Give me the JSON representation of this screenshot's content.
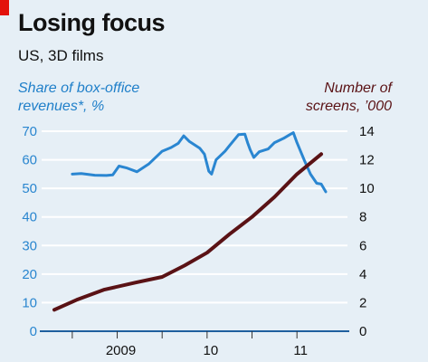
{
  "header": {
    "title": "Losing focus",
    "subtitle": "US, 3D films"
  },
  "chart_data": {
    "type": "line",
    "title": "Losing focus",
    "subtitle": "US, 3D films",
    "x_ticks": [
      {
        "label": "2009",
        "x": 2009.0
      },
      {
        "label": "10",
        "x": 2010.0
      },
      {
        "label": "11",
        "x": 2011.0
      }
    ],
    "xlim": [
      2008.3,
      2011.42
    ],
    "y_left": {
      "label_lines": [
        "Share of box-office",
        "revenues*, %"
      ],
      "ticks": [
        0,
        10,
        20,
        30,
        40,
        50,
        60,
        70
      ],
      "ylim": [
        0,
        70
      ]
    },
    "y_right": {
      "label_lines": [
        "Number of",
        "screens, ’000"
      ],
      "ticks": [
        0,
        2,
        4,
        6,
        8,
        10,
        12,
        14
      ],
      "ylim": [
        0,
        14
      ]
    },
    "series": [
      {
        "axis": "left",
        "color": "#2a86d1",
        "points": [
          [
            2008.5,
            55
          ],
          [
            2008.6,
            55.2
          ],
          [
            2008.75,
            54.6
          ],
          [
            2008.88,
            54.5
          ],
          [
            2008.95,
            54.7
          ],
          [
            2009.02,
            57.8
          ],
          [
            2009.1,
            57.2
          ],
          [
            2009.22,
            55.8
          ],
          [
            2009.35,
            58.5
          ],
          [
            2009.5,
            63
          ],
          [
            2009.6,
            64.3
          ],
          [
            2009.68,
            65.8
          ],
          [
            2009.74,
            68.4
          ],
          [
            2009.8,
            66.5
          ],
          [
            2009.92,
            64
          ],
          [
            2009.97,
            62
          ],
          [
            2010.02,
            56
          ],
          [
            2010.05,
            55
          ],
          [
            2010.1,
            60
          ],
          [
            2010.2,
            63
          ],
          [
            2010.25,
            65
          ],
          [
            2010.35,
            68.8
          ],
          [
            2010.42,
            69
          ],
          [
            2010.45,
            66
          ],
          [
            2010.48,
            63.5
          ],
          [
            2010.52,
            60.8
          ],
          [
            2010.58,
            62.8
          ],
          [
            2010.68,
            63.8
          ],
          [
            2010.75,
            66
          ],
          [
            2010.85,
            67.5
          ],
          [
            2010.92,
            68.8
          ],
          [
            2010.96,
            69.5
          ],
          [
            2011.0,
            66
          ],
          [
            2011.08,
            60
          ],
          [
            2011.15,
            55
          ],
          [
            2011.22,
            51.8
          ],
          [
            2011.27,
            51.5
          ],
          [
            2011.32,
            48.8
          ]
        ]
      },
      {
        "axis": "right",
        "color": "#5a1215",
        "points": [
          [
            2008.3,
            1.5
          ],
          [
            2008.55,
            2.2
          ],
          [
            2008.85,
            2.9
          ],
          [
            2009.2,
            3.4
          ],
          [
            2009.5,
            3.8
          ],
          [
            2009.75,
            4.6
          ],
          [
            2010.0,
            5.5
          ],
          [
            2010.25,
            6.8
          ],
          [
            2010.5,
            8.0
          ],
          [
            2010.75,
            9.4
          ],
          [
            2011.0,
            11.0
          ],
          [
            2011.27,
            12.4
          ]
        ]
      }
    ],
    "grid": true
  }
}
